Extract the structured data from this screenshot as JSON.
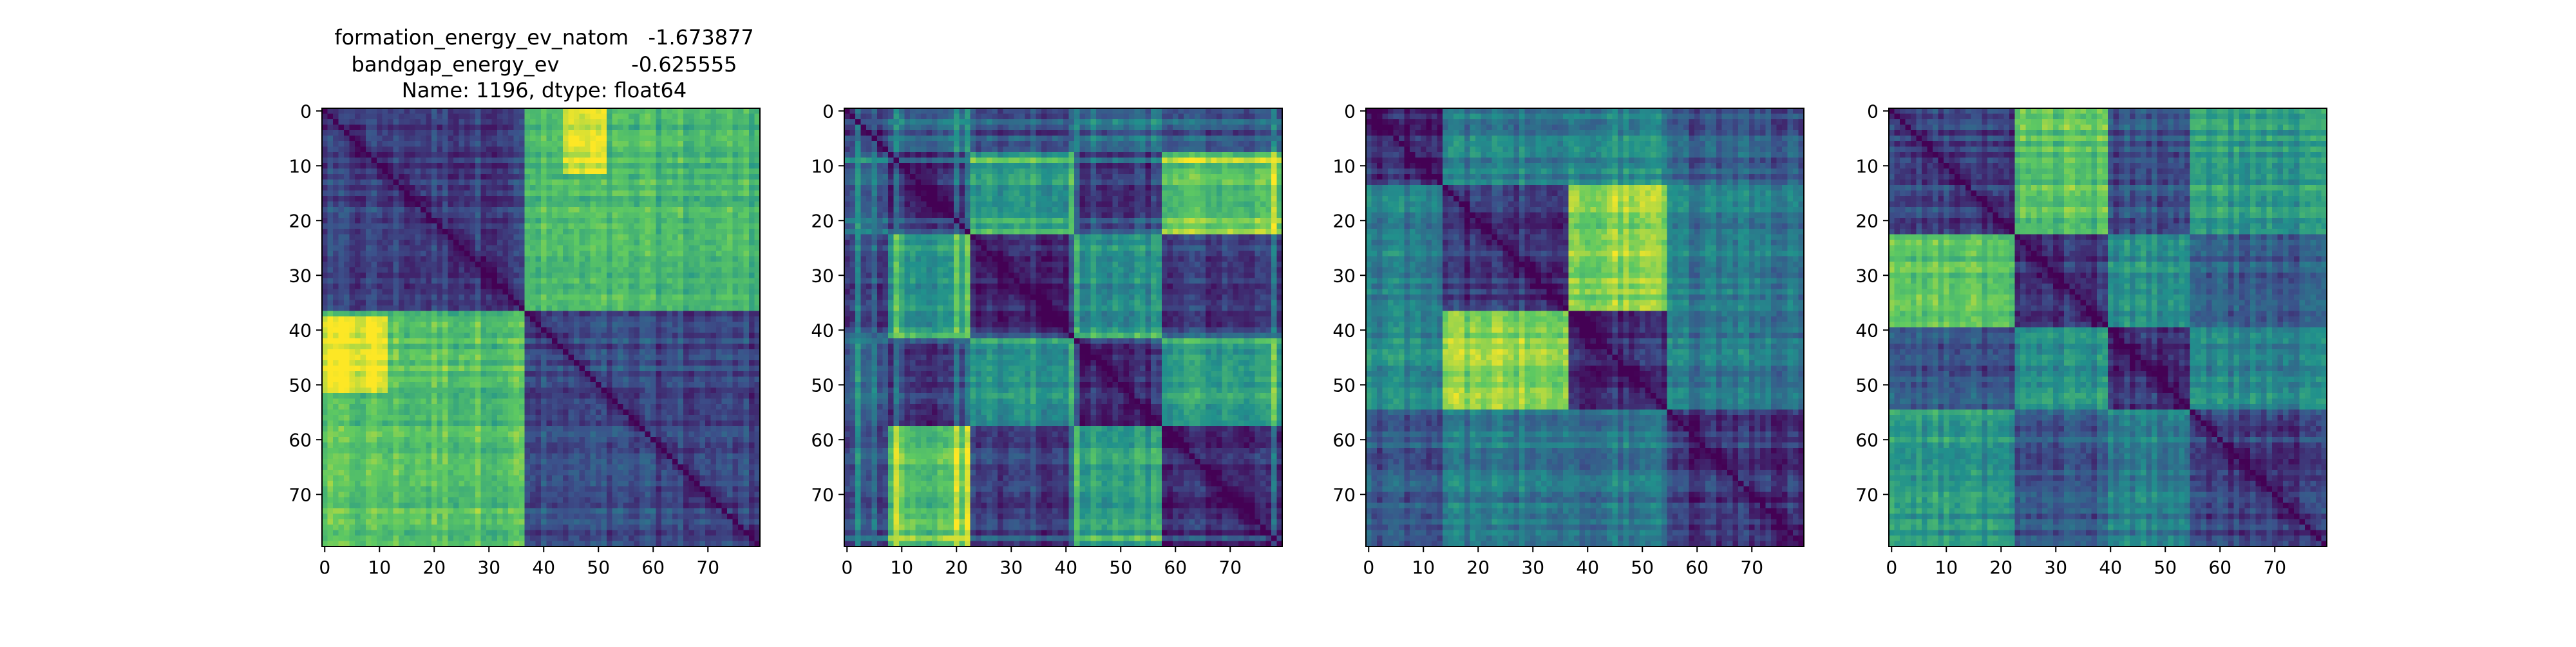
{
  "chart_data": {
    "type": "heatmap",
    "title_lines": [
      "formation_energy_ev_natom   -1.673877",
      "bandgap_energy_ev           -0.625555",
      "Name: 1196, dtype: float64"
    ],
    "colormap": "viridis",
    "colormap_stops": [
      "#440154",
      "#3b528b",
      "#21918c",
      "#5ec962",
      "#fde725"
    ],
    "matrix_size": 80,
    "x_ticks": [
      0,
      10,
      20,
      30,
      40,
      50,
      60,
      70
    ],
    "y_ticks": [
      0,
      10,
      20,
      30,
      40,
      50,
      60,
      70
    ],
    "grid": false,
    "panels": [
      {
        "blocks": [
          [
            0,
            37
          ],
          [
            37,
            80
          ]
        ],
        "block_levels": [
          [
            0.18,
            0.66
          ],
          [
            0.72,
            0.22
          ]
        ],
        "bright_spots": [
          [
            38,
            52,
            0,
            12,
            0.25
          ],
          [
            0,
            12,
            44,
            52,
            0.25
          ]
        ]
      },
      {
        "blocks": [
          [
            0,
            8
          ],
          [
            8,
            23
          ],
          [
            23,
            42
          ],
          [
            42,
            58
          ],
          [
            58,
            80
          ]
        ],
        "block_levels": [
          [
            0.2,
            0.3,
            0.22,
            0.32,
            0.25
          ],
          [
            0.3,
            0.15,
            0.55,
            0.18,
            0.72
          ],
          [
            0.22,
            0.55,
            0.14,
            0.52,
            0.2
          ],
          [
            0.32,
            0.18,
            0.52,
            0.15,
            0.58
          ],
          [
            0.25,
            0.72,
            0.2,
            0.58,
            0.15
          ]
        ],
        "stripes": [
          2,
          5,
          9,
          20,
          22,
          41,
          42,
          78
        ]
      },
      {
        "blocks": [
          [
            0,
            14
          ],
          [
            14,
            37
          ],
          [
            37,
            55
          ],
          [
            55,
            80
          ]
        ],
        "block_levels": [
          [
            0.14,
            0.42,
            0.48,
            0.28
          ],
          [
            0.42,
            0.15,
            0.82,
            0.4
          ],
          [
            0.48,
            0.82,
            0.14,
            0.4
          ],
          [
            0.28,
            0.4,
            0.4,
            0.16
          ]
        ]
      },
      {
        "blocks": [
          [
            0,
            23
          ],
          [
            23,
            40
          ],
          [
            40,
            55
          ],
          [
            55,
            80
          ]
        ],
        "block_levels": [
          [
            0.2,
            0.72,
            0.26,
            0.55
          ],
          [
            0.72,
            0.14,
            0.5,
            0.28
          ],
          [
            0.26,
            0.5,
            0.14,
            0.45
          ],
          [
            0.55,
            0.28,
            0.45,
            0.2
          ]
        ]
      }
    ]
  }
}
